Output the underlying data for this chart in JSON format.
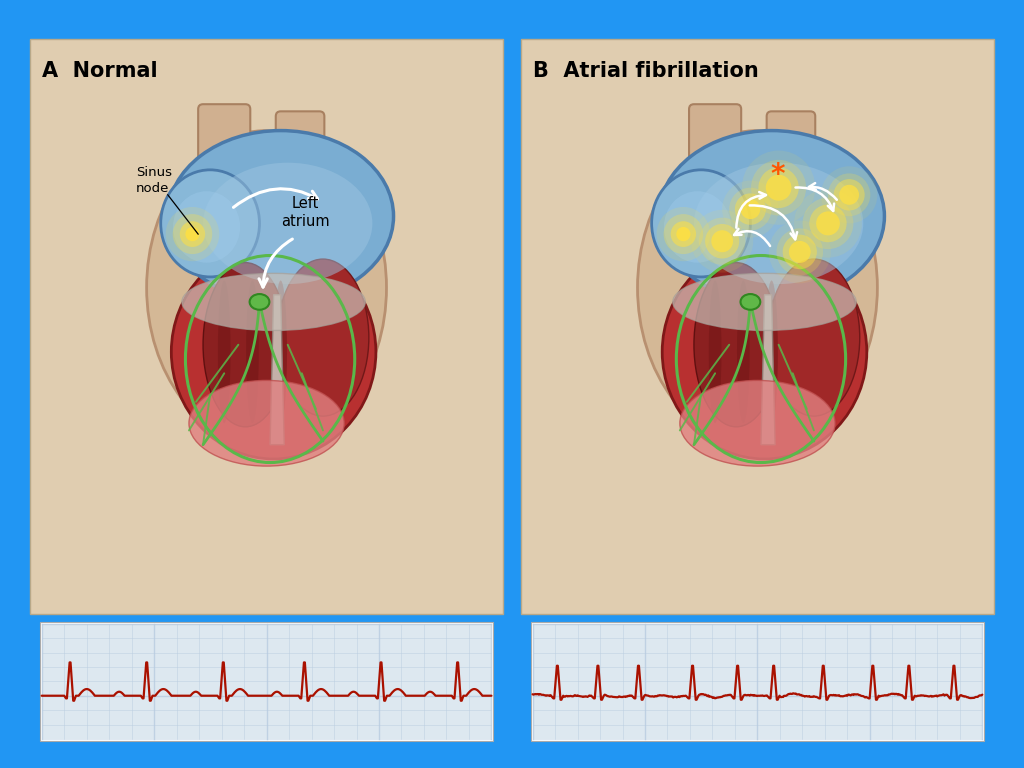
{
  "bg_outer": "#2196F3",
  "bg_inner": "#ddd0b8",
  "title_A": "A  Normal",
  "title_B": "B  Atrial fibrillation",
  "label_sinus": "Sinus\nnode",
  "label_atrium": "Left\natrium",
  "ecg_color": "#aa1100",
  "ecg_grid_color": "#b8cce0",
  "ecg_bg": "#dde8f0",
  "ecg_bg2": "#eef2f6",
  "skin_color": "#d4b896",
  "skin_dark": "#c09878",
  "atrium_color": "#7badd4",
  "atrium_light": "#a0c8e8",
  "atrium_dark": "#4477aa",
  "ventricle_dark": "#8b2020",
  "ventricle_mid": "#b03030",
  "ventricle_light": "#cc5050",
  "septum_color": "#c4b0a0",
  "green_node": "#5ab84a",
  "green_dark": "#3a8830",
  "yellow_glow": "#ffe040",
  "orange_star": "#ff5500",
  "white_arrow": "#ffffff",
  "panel_border": "#ccbbaa"
}
